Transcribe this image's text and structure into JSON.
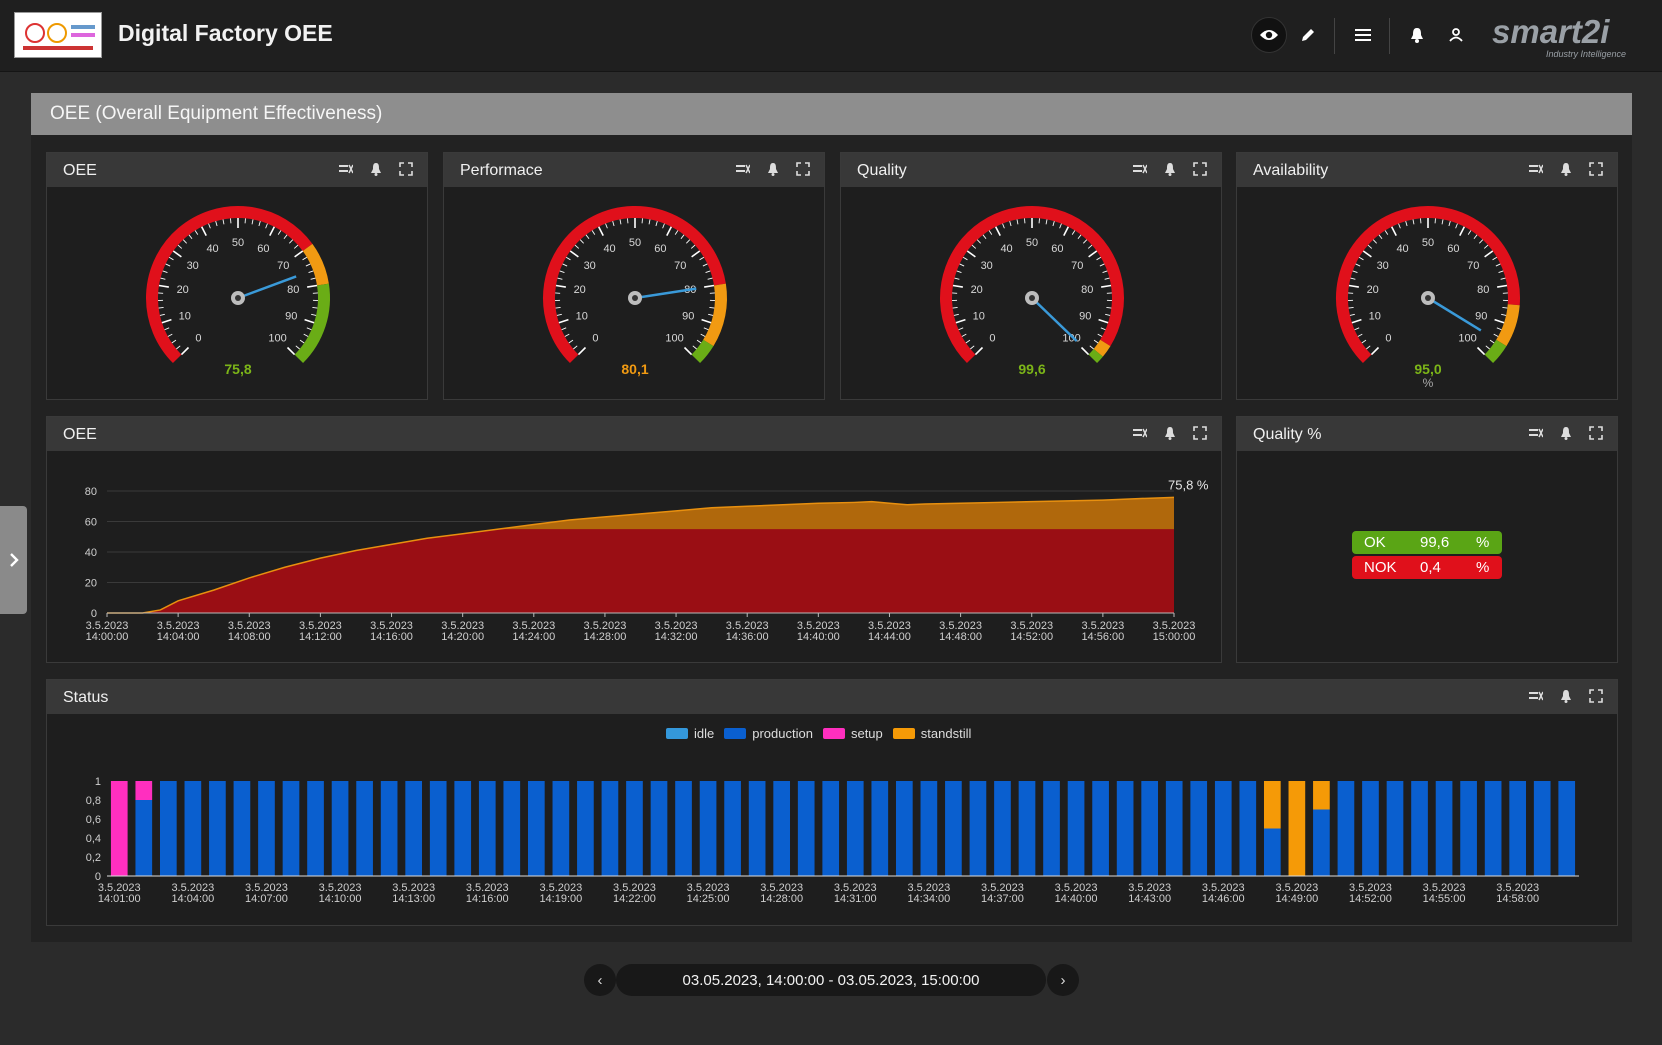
{
  "app": {
    "title": "Digital Factory OEE",
    "brand_name": "smart2i",
    "brand_tagline": "Industry Intelligence"
  },
  "section": {
    "title": "OEE (Overall Equipment Effectiveness)"
  },
  "gauges": [
    {
      "title": "OEE",
      "value": 75.8,
      "display": "75,8",
      "unit": "",
      "value_color": "#7cb518",
      "zones": [
        {
          "from": 0,
          "to": 70,
          "color": "#e0101b"
        },
        {
          "from": 70,
          "to": 80,
          "color": "#f19a12"
        },
        {
          "from": 80,
          "to": 100,
          "color": "#6aad16"
        }
      ]
    },
    {
      "title": "Performace",
      "value": 80.1,
      "display": "80,1",
      "unit": "",
      "value_color": "#f19a12",
      "zones": [
        {
          "from": 0,
          "to": 80,
          "color": "#e0101b"
        },
        {
          "from": 80,
          "to": 95,
          "color": "#f19a12"
        },
        {
          "from": 95,
          "to": 100,
          "color": "#6aad16"
        }
      ]
    },
    {
      "title": "Quality",
      "value": 99.6,
      "display": "99,6",
      "unit": "",
      "value_color": "#7cb518",
      "zones": [
        {
          "from": 0,
          "to": 95,
          "color": "#e0101b"
        },
        {
          "from": 95,
          "to": 98,
          "color": "#f19a12"
        },
        {
          "from": 98,
          "to": 100,
          "color": "#6aad16"
        }
      ]
    },
    {
      "title": "Availability",
      "value": 95.0,
      "display": "95,0",
      "unit": "%",
      "value_color": "#7cb518",
      "zones": [
        {
          "from": 0,
          "to": 85,
          "color": "#e0101b"
        },
        {
          "from": 85,
          "to": 95,
          "color": "#f19a12"
        },
        {
          "from": 95,
          "to": 100,
          "color": "#6aad16"
        }
      ]
    }
  ],
  "gauge_ticks": [
    "0",
    "10",
    "20",
    "30",
    "40",
    "50",
    "60",
    "70",
    "80",
    "90",
    "100"
  ],
  "oee_chart": {
    "title": "OEE",
    "end_label": "75,8 %",
    "chart_data": {
      "type": "area",
      "ylim": [
        0,
        80
      ],
      "yticks": [
        "0",
        "20",
        "40",
        "60",
        "80"
      ],
      "x_labels": [
        [
          "3.5.2023",
          "14:00:00"
        ],
        [
          "3.5.2023",
          "14:04:00"
        ],
        [
          "3.5.2023",
          "14:08:00"
        ],
        [
          "3.5.2023",
          "14:12:00"
        ],
        [
          "3.5.2023",
          "14:16:00"
        ],
        [
          "3.5.2023",
          "14:20:00"
        ],
        [
          "3.5.2023",
          "14:24:00"
        ],
        [
          "3.5.2023",
          "14:28:00"
        ],
        [
          "3.5.2023",
          "14:32:00"
        ],
        [
          "3.5.2023",
          "14:36:00"
        ],
        [
          "3.5.2023",
          "14:40:00"
        ],
        [
          "3.5.2023",
          "14:44:00"
        ],
        [
          "3.5.2023",
          "14:48:00"
        ],
        [
          "3.5.2023",
          "14:52:00"
        ],
        [
          "3.5.2023",
          "14:56:00"
        ],
        [
          "3.5.2023",
          "15:00:00"
        ]
      ],
      "x_minutes": [
        0,
        2,
        3,
        4,
        6,
        8,
        10,
        12,
        14,
        16,
        18,
        20,
        22,
        24,
        26,
        28,
        30,
        32,
        34,
        36,
        38,
        40,
        42,
        43,
        44,
        45,
        46,
        48,
        50,
        52,
        54,
        56,
        58,
        60
      ],
      "oee": [
        0,
        0,
        2,
        8,
        15,
        23,
        30,
        36,
        41,
        45,
        49,
        52,
        55,
        58,
        61,
        63,
        65,
        67,
        69,
        70,
        71,
        72,
        72.5,
        73,
        72,
        71,
        71.5,
        72,
        72.5,
        73,
        73.5,
        74,
        75,
        75.8
      ],
      "threshold": 55,
      "colors": {
        "below": "#9a0e14",
        "above": "#b0680c",
        "line": "#e8900f"
      }
    }
  },
  "quality_pct": {
    "title": "Quality %",
    "rows": [
      {
        "label": "OK",
        "value": "99,6",
        "unit": "%",
        "color": "#5aa515"
      },
      {
        "label": "NOK",
        "value": "0,4",
        "unit": "%",
        "color": "#e0101b"
      }
    ]
  },
  "status_chart": {
    "title": "Status",
    "legend": [
      {
        "label": "idle",
        "color": "#3498db"
      },
      {
        "label": "production",
        "color": "#0a5fcf"
      },
      {
        "label": "setup",
        "color": "#ff2fbf"
      },
      {
        "label": "standstill",
        "color": "#f59a07"
      }
    ],
    "chart_data": {
      "type": "bar",
      "stacked": true,
      "ylim": [
        0,
        1
      ],
      "yticks": [
        "0",
        "0,2",
        "0,4",
        "0,6",
        "0,8",
        "1"
      ],
      "categories_count": 60,
      "setup": [
        1,
        0.2,
        0,
        0,
        0,
        0,
        0,
        0,
        0,
        0,
        0,
        0,
        0,
        0,
        0,
        0,
        0,
        0,
        0,
        0,
        0,
        0,
        0,
        0,
        0,
        0,
        0,
        0,
        0,
        0,
        0,
        0,
        0,
        0,
        0,
        0,
        0,
        0,
        0,
        0,
        0,
        0,
        0,
        0,
        0,
        0,
        0,
        0,
        0,
        0,
        0,
        0,
        0,
        0,
        0,
        0,
        0,
        0,
        0,
        0
      ],
      "standstill": [
        0,
        0,
        0,
        0,
        0,
        0,
        0,
        0,
        0,
        0,
        0,
        0,
        0,
        0,
        0,
        0,
        0,
        0,
        0,
        0,
        0,
        0,
        0,
        0,
        0,
        0,
        0,
        0,
        0,
        0,
        0,
        0,
        0,
        0,
        0,
        0,
        0,
        0,
        0,
        0,
        0,
        0,
        0,
        0,
        0,
        0,
        0,
        0.5,
        1,
        0.3,
        0,
        0,
        0,
        0,
        0,
        0,
        0,
        0,
        0,
        0
      ],
      "x_labels": [
        [
          "3.5.2023",
          "14:01:00"
        ],
        [
          "3.5.2023",
          "14:04:00"
        ],
        [
          "3.5.2023",
          "14:07:00"
        ],
        [
          "3.5.2023",
          "14:10:00"
        ],
        [
          "3.5.2023",
          "14:13:00"
        ],
        [
          "3.5.2023",
          "14:16:00"
        ],
        [
          "3.5.2023",
          "14:19:00"
        ],
        [
          "3.5.2023",
          "14:22:00"
        ],
        [
          "3.5.2023",
          "14:25:00"
        ],
        [
          "3.5.2023",
          "14:28:00"
        ],
        [
          "3.5.2023",
          "14:31:00"
        ],
        [
          "3.5.2023",
          "14:34:00"
        ],
        [
          "3.5.2023",
          "14:37:00"
        ],
        [
          "3.5.2023",
          "14:40:00"
        ],
        [
          "3.5.2023",
          "14:43:00"
        ],
        [
          "3.5.2023",
          "14:46:00"
        ],
        [
          "3.5.2023",
          "14:49:00"
        ],
        [
          "3.5.2023",
          "14:52:00"
        ],
        [
          "3.5.2023",
          "14:55:00"
        ],
        [
          "3.5.2023",
          "14:58:00"
        ]
      ]
    }
  },
  "range": {
    "text": "03.05.2023, 14:00:00 - 03.05.2023, 15:00:00",
    "prev_label": "‹",
    "next_label": "›"
  }
}
